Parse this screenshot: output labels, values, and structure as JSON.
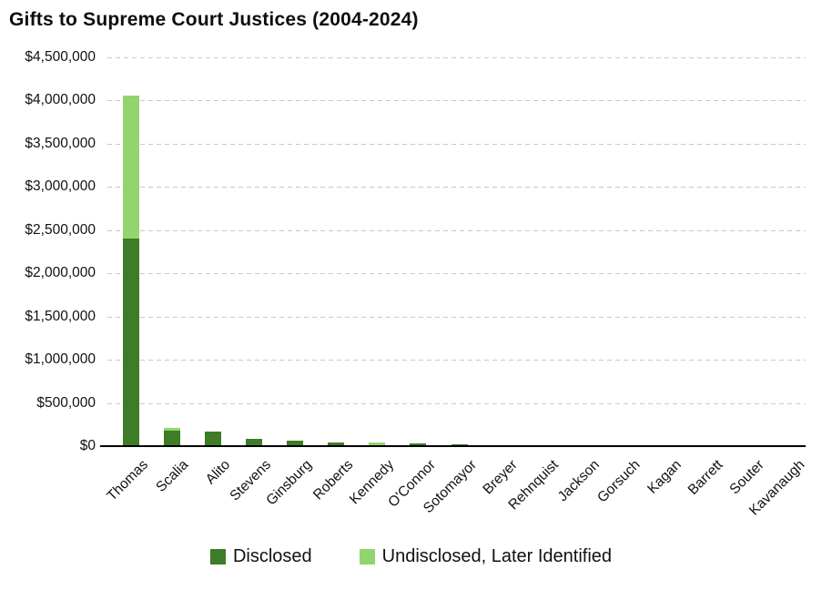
{
  "title": "Gifts to Supreme Court Justices (2004-2024)",
  "colors": {
    "disclosed": "#3e7c28",
    "undisclosed": "#92d56f",
    "gridline": "#c9c9c9",
    "axis": "#000000",
    "text": "#111111"
  },
  "chart_data": {
    "type": "bar",
    "stacked": true,
    "title": "Gifts to Supreme Court Justices (2004-2024)",
    "categories": [
      "Thomas",
      "Scalia",
      "Alito",
      "Stevens",
      "Ginsburg",
      "Roberts",
      "Kennedy",
      "O'Connor",
      "Sotomayor",
      "Breyer",
      "Rehnquist",
      "Jackson",
      "Gorsuch",
      "Kagan",
      "Barrett",
      "Souter",
      "Kavanaugh"
    ],
    "series": [
      {
        "name": "Disclosed",
        "color": "#3e7c28",
        "values": [
          2400000,
          180000,
          170000,
          85000,
          60000,
          47000,
          0,
          28000,
          20000,
          15000,
          0,
          5000,
          0,
          0,
          0,
          0,
          0
        ]
      },
      {
        "name": "Undisclosed, Later Identified",
        "color": "#92d56f",
        "values": [
          1650000,
          35000,
          0,
          0,
          0,
          0,
          44000,
          0,
          0,
          0,
          6000,
          0,
          0,
          0,
          0,
          0,
          0
        ]
      }
    ],
    "xlabel": "",
    "ylabel": "",
    "ylim": [
      0,
      4500000
    ],
    "ytick_step": 500000,
    "ytick_labels": [
      "$0",
      "$500,000",
      "$1,000,000",
      "$1,500,000",
      "$2,000,000",
      "$2,500,000",
      "$3,000,000",
      "$3,500,000",
      "$4,000,000",
      "$4,500,000"
    ],
    "grid": "horizontal-dashed",
    "legend_position": "bottom"
  }
}
